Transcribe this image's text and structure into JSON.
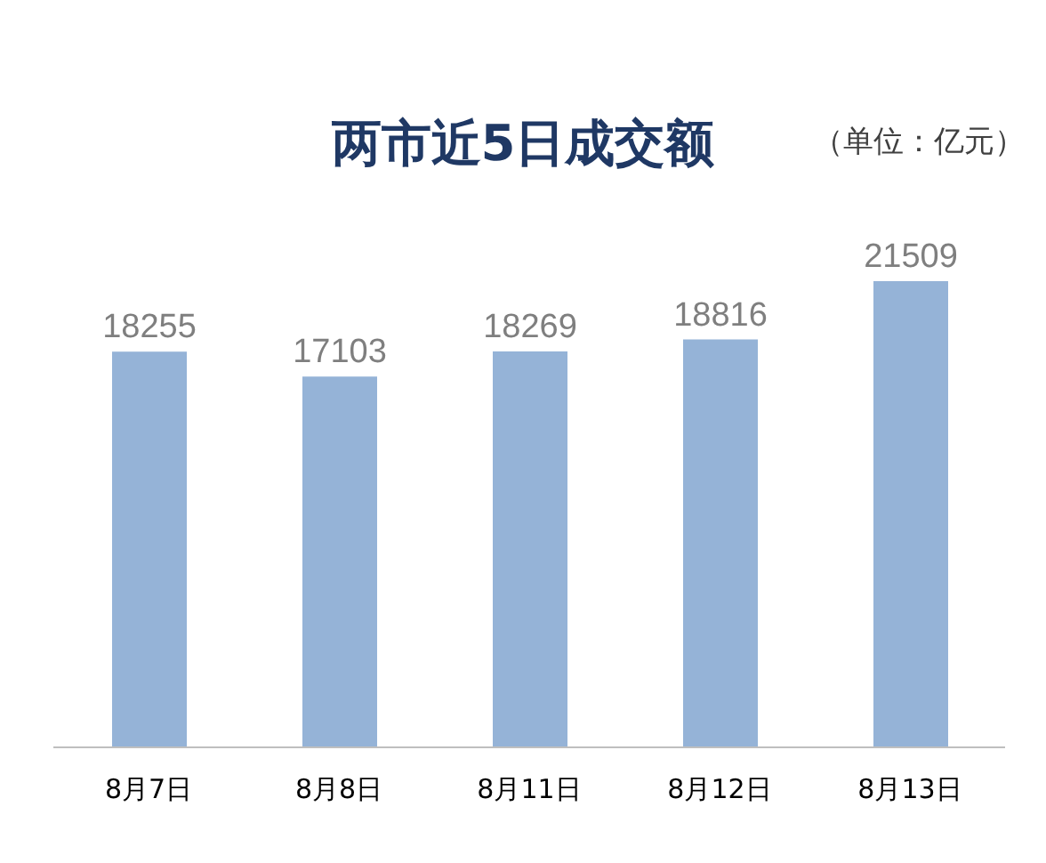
{
  "chart_data": {
    "type": "bar",
    "title": "两市近5日成交额",
    "annotations": [
      "（单位：亿元）"
    ],
    "categories": [
      "8月7日",
      "8月8日",
      "8月11日",
      "8月12日",
      "8月13日"
    ],
    "values": [
      18255,
      17103,
      18269,
      18816,
      21509
    ],
    "color": "#95b3d7",
    "data_labels": true
  }
}
